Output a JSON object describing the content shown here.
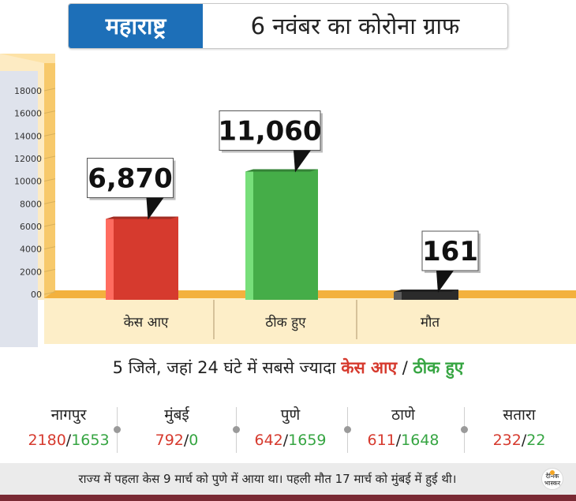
{
  "header": {
    "state": "महाराष्ट्र",
    "title": "6 नवंबर का कोरोना ग्राफ"
  },
  "chart_data": {
    "type": "bar",
    "categories": [
      "केस आए",
      "ठीक हुए",
      "मौत"
    ],
    "values": [
      6870,
      11060,
      161
    ],
    "value_labels": [
      "6,870",
      "11,060",
      "161"
    ],
    "ylim": [
      0,
      18000
    ],
    "yticks": [
      "00",
      "2000",
      "4000",
      "6000",
      "8000",
      "10000",
      "12000",
      "14000",
      "16000",
      "18000"
    ],
    "colors": [
      "#d63a2e",
      "#45ad48",
      "#2b2b2b"
    ],
    "grid": false
  },
  "subtitle": {
    "prefix": "5 जिले, जहां 24 घंटे में सबसे ज्यादा ",
    "cases_label": "केस आए",
    "separator": " / ",
    "recovered_label": "ठीक हुए"
  },
  "districts": [
    {
      "name": "नागपुर",
      "cases": "2180",
      "slash": "/",
      "recovered": "1653"
    },
    {
      "name": "मुंबई",
      "cases": "792",
      "slash": "/",
      "recovered": "0"
    },
    {
      "name": "पुणे",
      "cases": "642",
      "slash": "/",
      "recovered": "1659"
    },
    {
      "name": "ठाणे",
      "cases": "611",
      "slash": "/",
      "recovered": "1648"
    },
    {
      "name": "सतारा",
      "cases": "232",
      "slash": "/",
      "recovered": "22"
    }
  ],
  "footer": {
    "note": "राज्य में पहला केस 9 मार्च को पुणे में आया था। पहली मौत 17 मार्च को मुंबई में हुई थी।",
    "brand_line1": "दैनिक",
    "brand_line2": "भास्कर"
  },
  "colors": {
    "state_bg": "#1d6fb8",
    "cases": "#d63a2e",
    "recovered": "#36a542",
    "axis_panel": "#fde8b8",
    "floor": "#f3b13e",
    "bottom_bar": "#7a2a34"
  }
}
